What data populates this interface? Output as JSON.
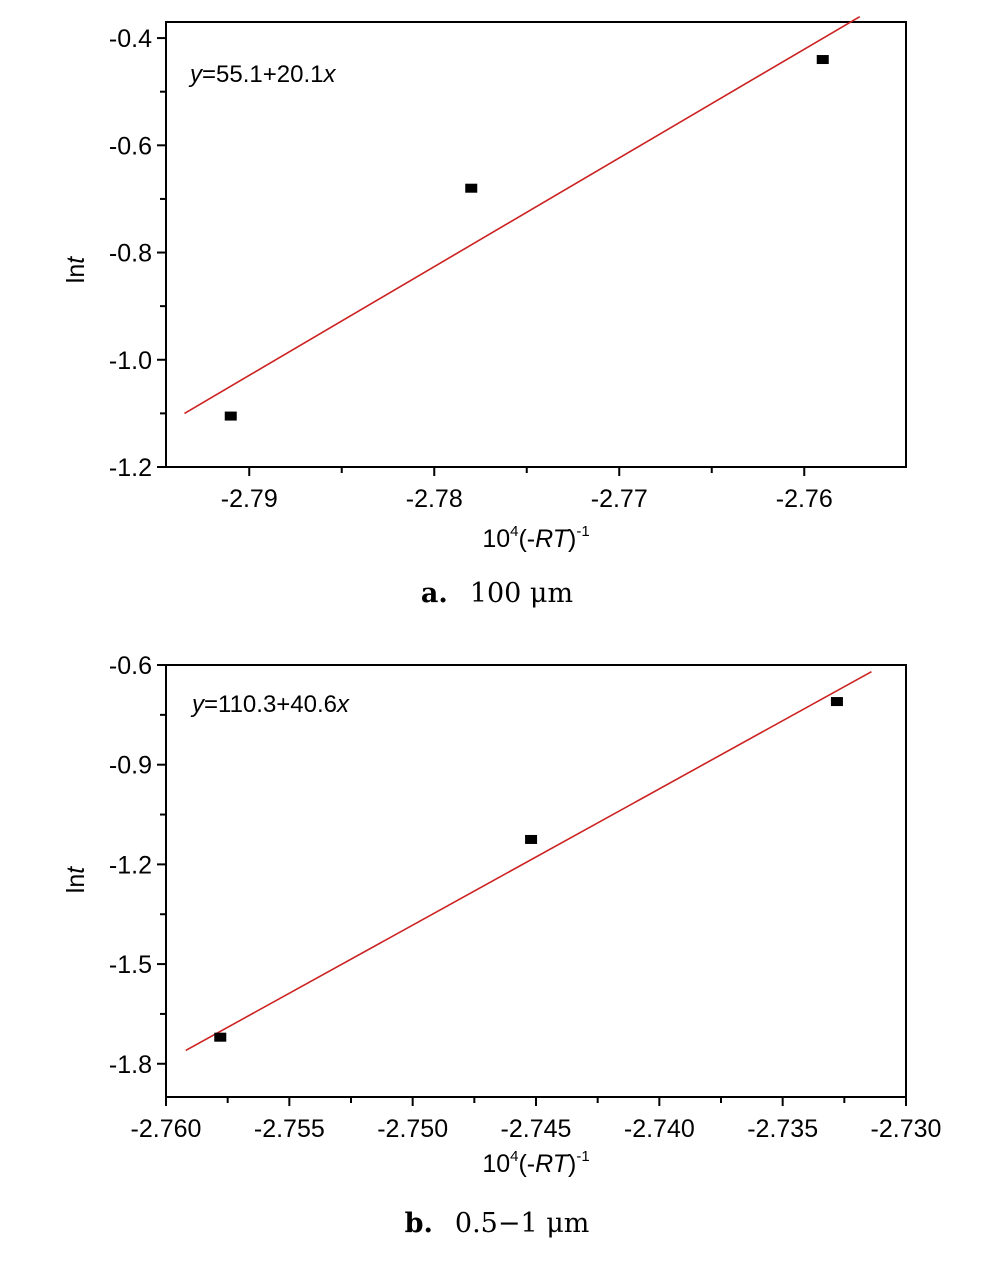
{
  "chart_data": [
    {
      "type": "scatter",
      "panel": "a",
      "caption": {
        "letter": "a.",
        "text": "100 μm"
      },
      "equation": {
        "y": "y",
        "body": "=55.1+20.1",
        "x": "x"
      },
      "xlabel": {
        "base": "10",
        "exp": "4",
        "open": "(-",
        "italic": "RT",
        "close": ")",
        "exp2": "-1"
      },
      "ylabel": {
        "prefix": "ln",
        "italic": "t"
      },
      "xlim": [
        -2.7945,
        -2.7545
      ],
      "ylim": [
        -1.2,
        -0.37
      ],
      "xticks": [
        -2.79,
        -2.78,
        -2.77,
        -2.76
      ],
      "xtick_labels": [
        "-2.79",
        "-2.78",
        "-2.77",
        "-2.76"
      ],
      "yticks": [
        -1.2,
        -1.0,
        -0.8,
        -0.6,
        -0.4
      ],
      "ytick_labels": [
        "-1.2",
        "-1.0",
        "-0.8",
        "-0.6",
        "-0.4"
      ],
      "points": [
        {
          "x": -2.791,
          "y": -1.105
        },
        {
          "x": -2.778,
          "y": -0.68
        },
        {
          "x": -2.759,
          "y": -0.44
        }
      ],
      "fit_line": {
        "x": [
          -2.7935,
          -2.757
        ],
        "y": [
          -1.1,
          -0.36
        ]
      },
      "colors": {
        "line": "#cc2222",
        "point": "#000000"
      }
    },
    {
      "type": "scatter",
      "panel": "b",
      "caption": {
        "letter": "b.",
        "text": "0.5−1 μm"
      },
      "equation": {
        "y": "y",
        "body": "=110.3+40.6",
        "x": "x"
      },
      "xlabel": {
        "base": "10",
        "exp": "4",
        "open": "(-",
        "italic": "RT",
        "close": ")",
        "exp2": "-1"
      },
      "ylabel": {
        "prefix": "ln",
        "italic": "t"
      },
      "xlim": [
        -2.76,
        -2.73
      ],
      "ylim": [
        -1.9,
        -0.6
      ],
      "xticks": [
        -2.76,
        -2.755,
        -2.75,
        -2.745,
        -2.74,
        -2.735,
        -2.73
      ],
      "xtick_labels": [
        "-2.760",
        "-2.755",
        "-2.750",
        "-2.745",
        "-2.740",
        "-2.735",
        "-2.730"
      ],
      "yticks": [
        -1.8,
        -1.5,
        -1.2,
        -0.9,
        -0.6
      ],
      "ytick_labels": [
        "-1.8",
        "-1.5",
        "-1.2",
        "-0.9",
        "-0.6"
      ],
      "points": [
        {
          "x": -2.7578,
          "y": -1.72
        },
        {
          "x": -2.7452,
          "y": -1.125
        },
        {
          "x": -2.7328,
          "y": -0.71
        }
      ],
      "fit_line": {
        "x": [
          -2.7592,
          -2.7314
        ],
        "y": [
          -1.76,
          -0.62
        ]
      },
      "colors": {
        "line": "#cc2222",
        "point": "#000000"
      }
    }
  ]
}
